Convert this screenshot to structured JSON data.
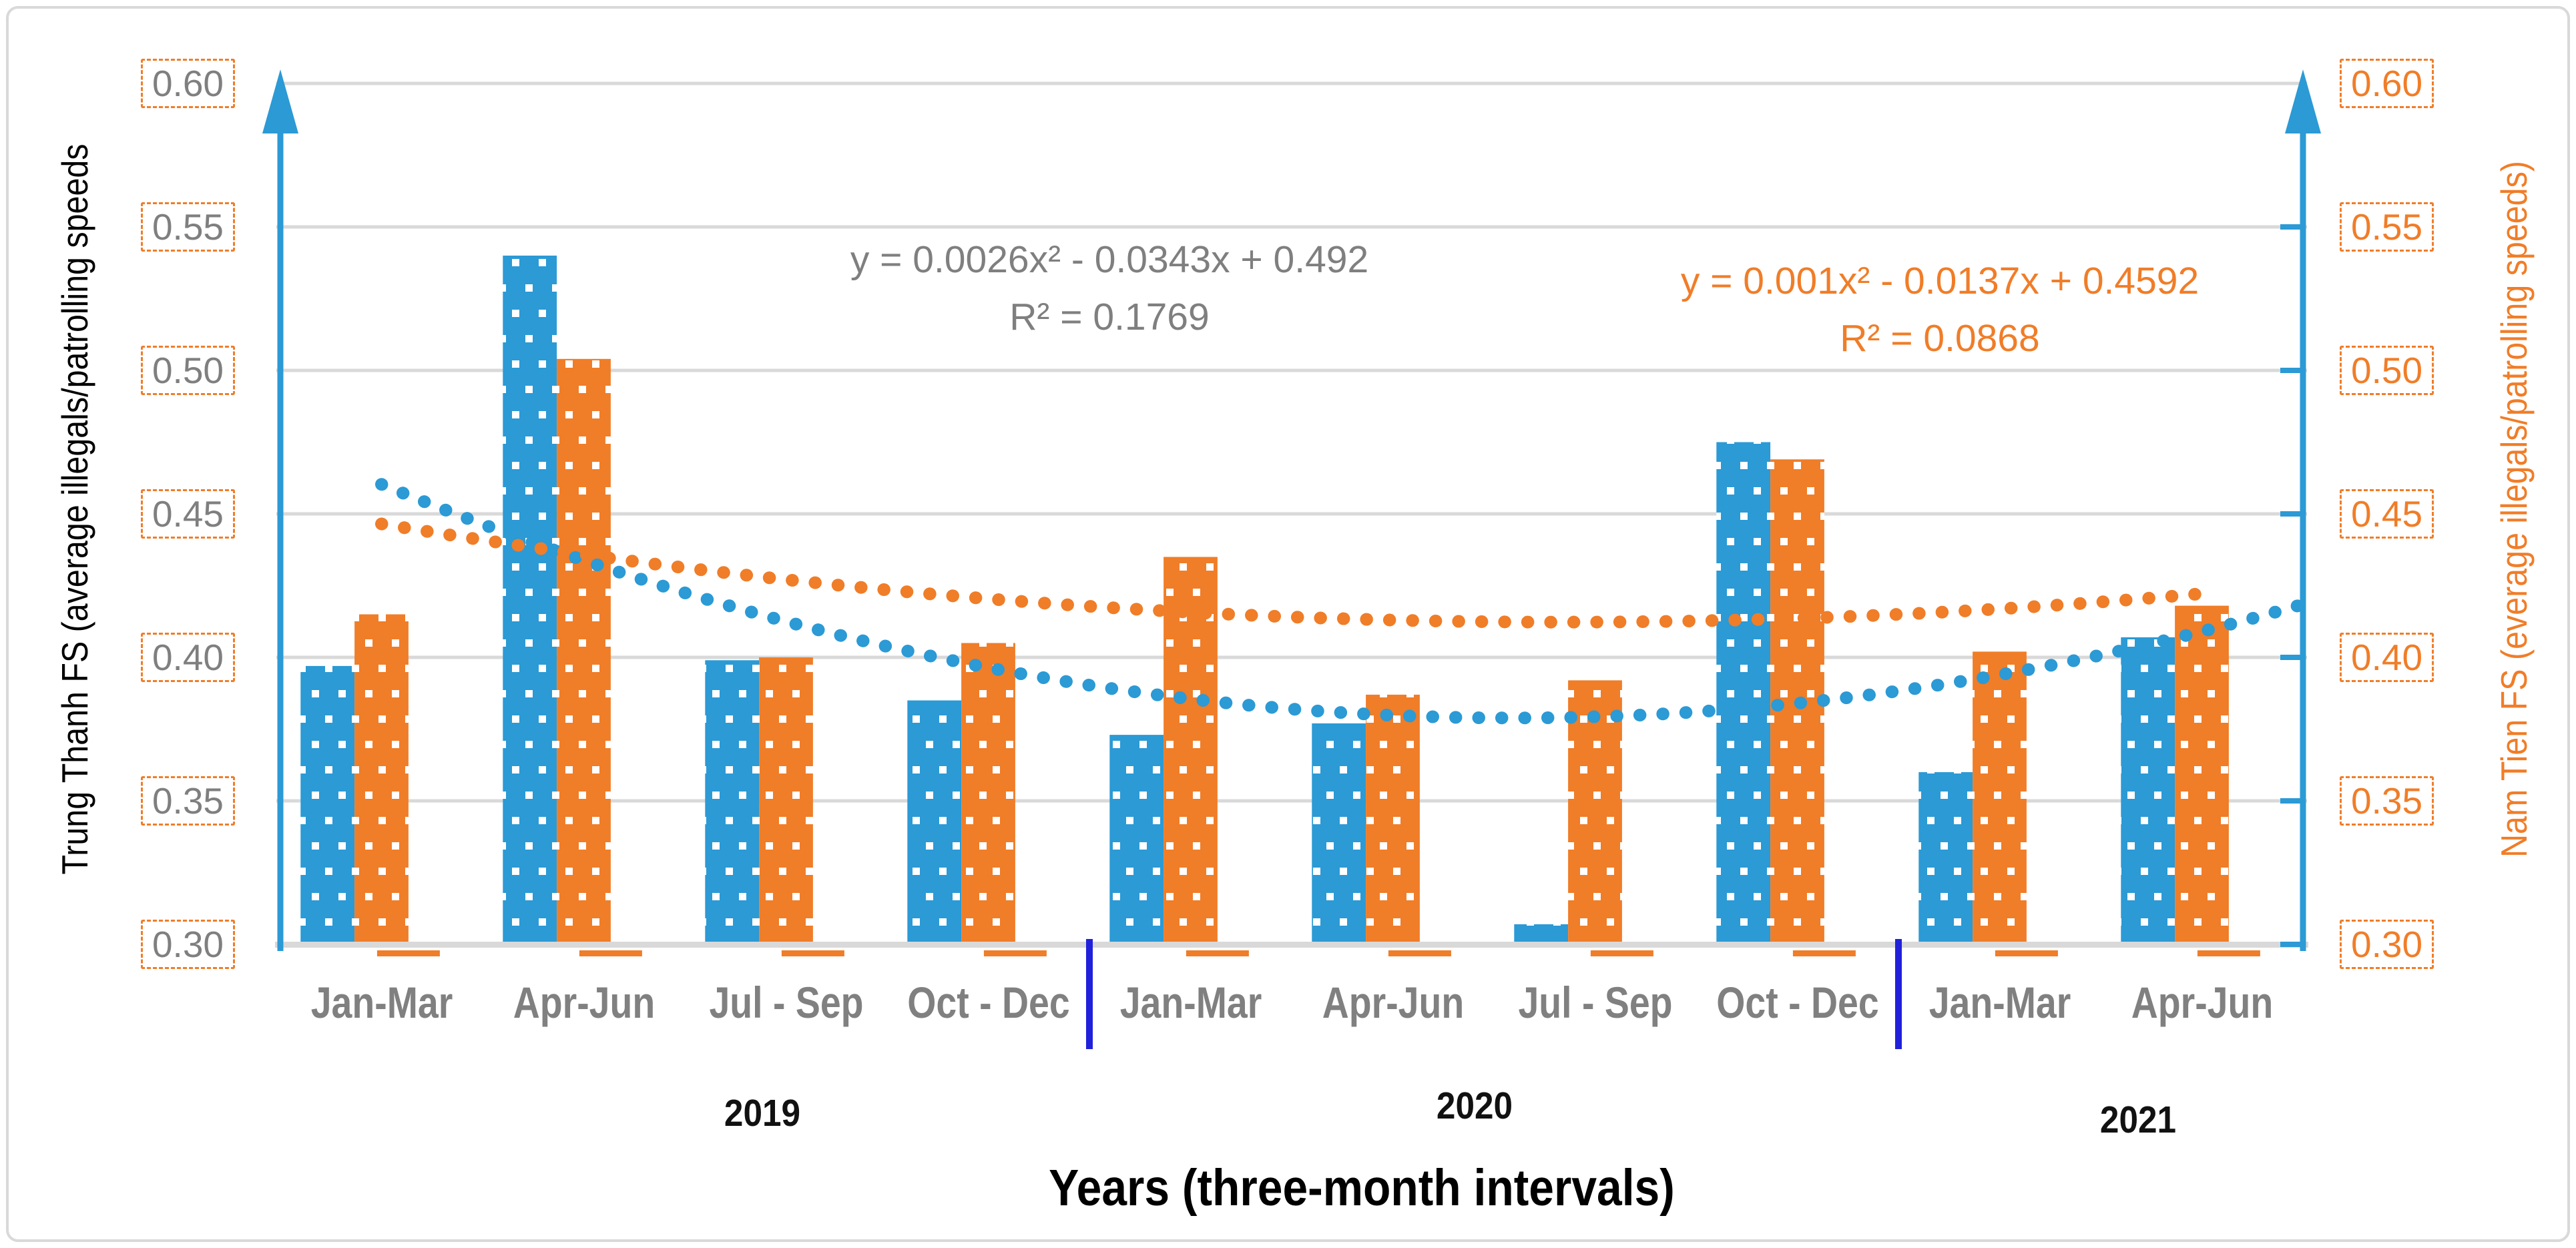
{
  "chart_data": {
    "type": "bar",
    "title": "",
    "xlabel": "Years (three-month intervals)",
    "legend": "none",
    "grid": true,
    "y_axis_left": {
      "title": "Trung Thanh FS (average illegals/patrolling speeds",
      "min": 0.3,
      "max": 0.6,
      "step": 0.05,
      "ticks": [
        "0.60",
        "0.55",
        "0.50",
        "0.45",
        "0.40",
        "0.35",
        "0.30"
      ]
    },
    "y_axis_right": {
      "title": "Nam Tien FS (everage illegals/patrolling speeds)",
      "min": 0.3,
      "max": 0.6,
      "step": 0.05,
      "ticks": [
        "0.60",
        "0.55",
        "0.50",
        "0.45",
        "0.40",
        "0.35",
        "0.30"
      ]
    },
    "categories": [
      "Jan-Mar",
      "Apr-Jun",
      "Jul - Sep",
      "Oct - Dec",
      "Jan-Mar",
      "Apr-Jun",
      "Jul - Sep",
      "Oct - Dec",
      "Jan-Mar",
      "Apr-Jun"
    ],
    "years": [
      {
        "label": "2019",
        "category_span": [
          1,
          4
        ]
      },
      {
        "label": "2020",
        "category_span": [
          5,
          8
        ]
      },
      {
        "label": "2021",
        "category_span": [
          9,
          10
        ]
      }
    ],
    "series": [
      {
        "name": "Trung Thanh FS",
        "axis": "left",
        "color": "#2b9ad5",
        "values": [
          0.397,
          0.54,
          0.399,
          0.385,
          0.373,
          0.377,
          0.307,
          0.475,
          0.36,
          0.407
        ]
      },
      {
        "name": "Nam Tien FS",
        "axis": "right",
        "color": "#f07d28",
        "values": [
          0.415,
          0.504,
          0.4,
          0.405,
          0.435,
          0.387,
          0.392,
          0.469,
          0.402,
          0.418
        ]
      }
    ],
    "baseline_markers": {
      "color": "#f07d28",
      "value": 0.3
    },
    "separators_after_categories": [
      4,
      8
    ],
    "trendlines": [
      {
        "series": "Trung Thanh FS",
        "color": "#2b9ad5",
        "equation": "y = 0.0026x² - 0.0343x + 0.492",
        "r_squared": "R² = 0.1769",
        "coefficients": {
          "a": 0.0026,
          "b": -0.0343,
          "c": 0.492
        },
        "x_range": [
          1,
          10.5
        ]
      },
      {
        "series": "Nam Tien FS",
        "color": "#f07d28",
        "equation": "y = 0.001x² - 0.0137x + 0.4592",
        "r_squared": "R² = 0.0868",
        "coefficients": {
          "a": 0.001,
          "b": -0.0137,
          "c": 0.4592
        },
        "x_range": [
          1,
          10
        ]
      }
    ]
  },
  "colors": {
    "blue": "#2b9ad5",
    "orange": "#f07d28",
    "gridline": "#d9d9d9",
    "separator": "#2121db",
    "tick_text_left": "#7f7f7f",
    "month_label": "#808080",
    "year_label": "#111111"
  }
}
